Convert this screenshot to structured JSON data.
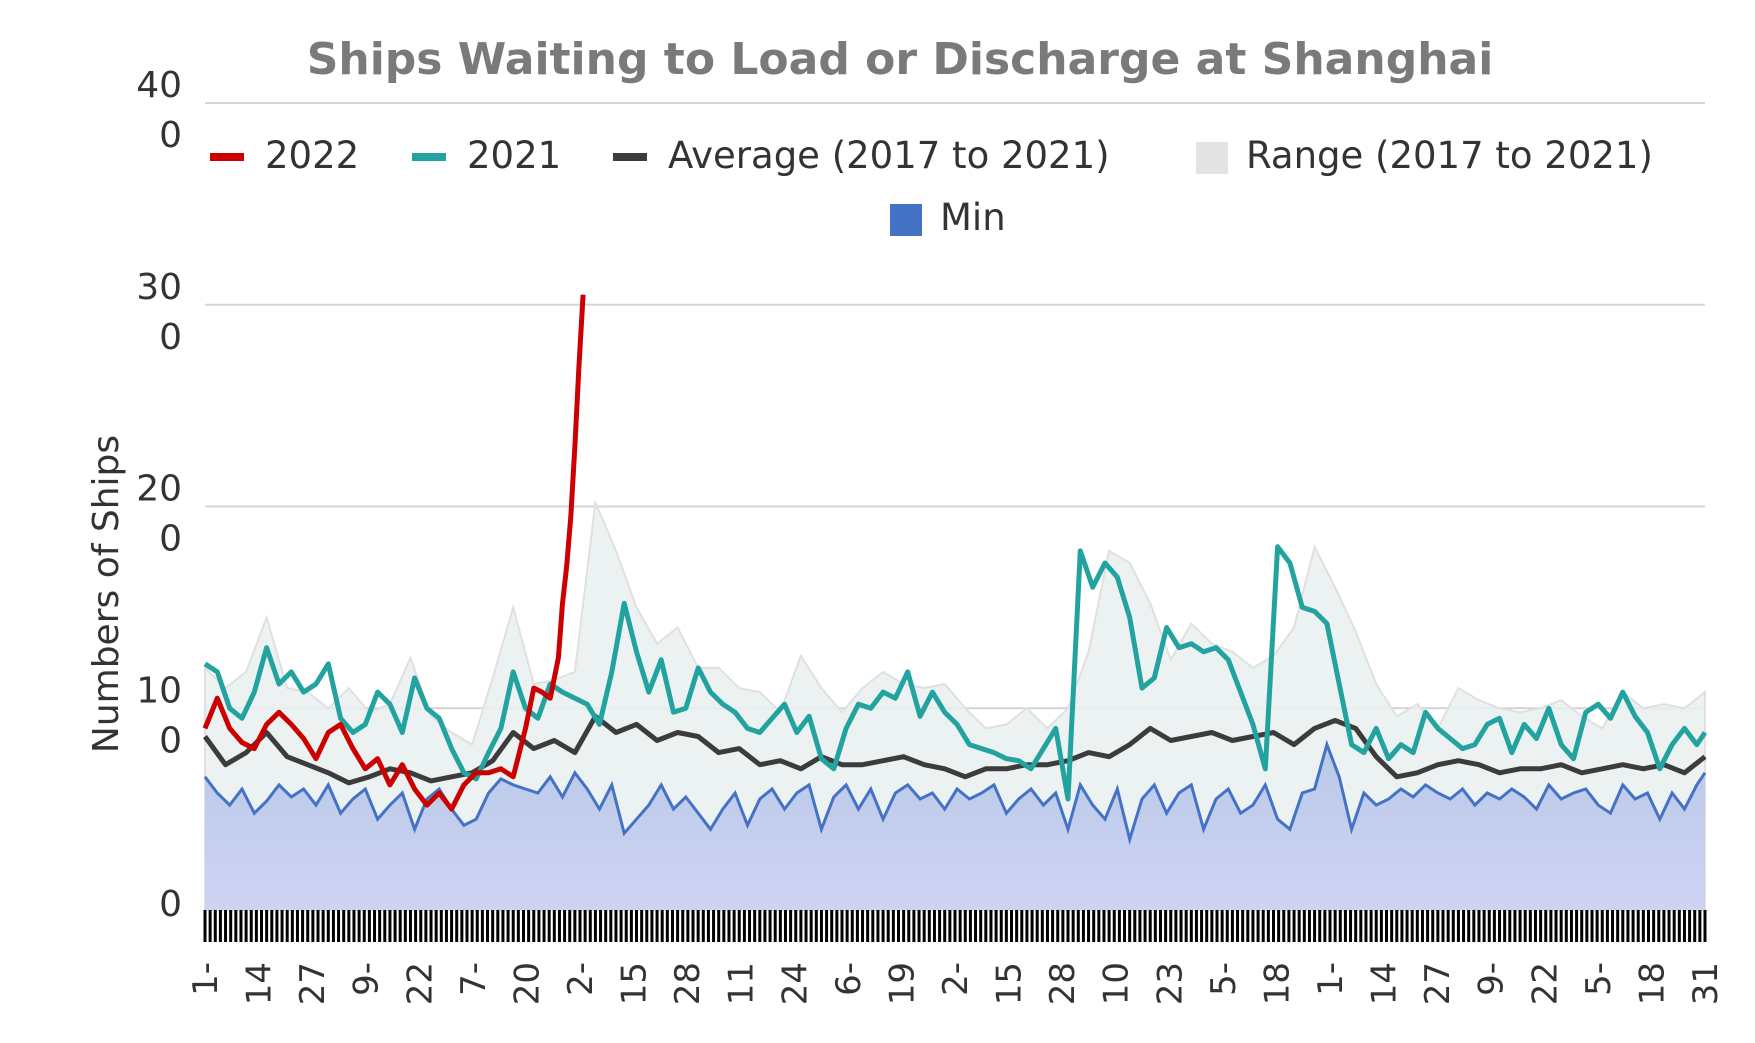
{
  "chart_data": {
    "type": "line",
    "title": "Ships Waiting to Load or Discharge at Shanghai",
    "ylabel": "Numbers of Ships",
    "xlabel": "",
    "ylim": [
      0,
      400
    ],
    "y_ticks": [
      {
        "value": 0,
        "label": [
          "0"
        ]
      },
      {
        "value": 100,
        "label": [
          "10",
          "0"
        ]
      },
      {
        "value": 200,
        "label": [
          "20",
          "0"
        ]
      },
      {
        "value": 300,
        "label": [
          "30",
          "0"
        ]
      },
      {
        "value": 400,
        "label": [
          "40",
          "0"
        ]
      }
    ],
    "x_tick_labels": [
      "1-",
      "14",
      "27",
      "9-",
      "22",
      "7-",
      "20",
      "2-",
      "15",
      "28",
      "11",
      "24",
      "6-",
      "19",
      "2-",
      "15",
      "28",
      "10",
      "23",
      "5-",
      "18",
      "1-",
      "14",
      "27",
      "9-",
      "22",
      "5-",
      "18",
      "31"
    ],
    "grid": true,
    "legend_position": "top",
    "legend": [
      {
        "name": "2022",
        "color": "#cc0000",
        "marker": "line"
      },
      {
        "name": "2021",
        "color": "#22a3a0",
        "marker": "line"
      },
      {
        "name": "Average (2017 to 2021)",
        "color": "#3c3c3c",
        "marker": "line"
      },
      {
        "name": "Range (2017 to 2021)",
        "color": "#e4e4e4",
        "marker": "box"
      },
      {
        "name": "Min",
        "color": "#4472c4",
        "marker": "box"
      }
    ],
    "x_domain": [
      0,
      365
    ],
    "series": [
      {
        "name": "2022",
        "color": "#cc0000",
        "x": [
          0,
          3,
          6,
          9,
          12,
          15,
          18,
          21,
          24,
          27,
          30,
          33,
          36,
          39,
          42,
          45,
          48,
          51,
          54,
          57,
          60,
          63,
          66,
          69,
          72,
          75,
          78,
          80,
          82,
          84,
          86,
          87,
          88,
          89,
          90,
          91,
          92
        ],
        "y": [
          90,
          105,
          90,
          83,
          80,
          92,
          98,
          92,
          85,
          75,
          88,
          92,
          80,
          70,
          75,
          62,
          72,
          60,
          52,
          58,
          50,
          62,
          68,
          68,
          70,
          66,
          90,
          110,
          108,
          105,
          125,
          152,
          170,
          195,
          230,
          270,
          305
        ]
      },
      {
        "name": "2021",
        "color": "#22a3a0",
        "x": [
          0,
          3,
          6,
          9,
          12,
          15,
          18,
          21,
          24,
          27,
          30,
          33,
          36,
          39,
          42,
          45,
          48,
          51,
          54,
          57,
          60,
          63,
          66,
          69,
          72,
          75,
          78,
          81,
          84,
          87,
          90,
          93,
          96,
          99,
          102,
          105,
          108,
          111,
          114,
          117,
          120,
          123,
          126,
          129,
          132,
          135,
          138,
          141,
          144,
          147,
          150,
          153,
          156,
          159,
          162,
          165,
          168,
          171,
          174,
          177,
          180,
          183,
          186,
          189,
          192,
          195,
          198,
          201,
          204,
          207,
          210,
          213,
          216,
          219,
          222,
          225,
          228,
          231,
          234,
          237,
          240,
          243,
          246,
          249,
          252,
          255,
          258,
          261,
          264,
          267,
          270,
          273,
          276,
          279,
          282,
          285,
          288,
          291,
          294,
          297,
          300,
          303,
          306,
          309,
          312,
          315,
          318,
          321,
          324,
          327,
          330,
          333,
          336,
          339,
          342,
          345,
          348,
          351,
          354,
          357,
          360,
          363,
          365
        ],
        "y": [
          122,
          118,
          100,
          95,
          108,
          130,
          112,
          118,
          108,
          112,
          122,
          95,
          88,
          92,
          108,
          102,
          88,
          115,
          100,
          95,
          80,
          68,
          65,
          78,
          90,
          118,
          100,
          95,
          112,
          108,
          105,
          102,
          92,
          118,
          152,
          128,
          108,
          124,
          98,
          100,
          120,
          108,
          102,
          98,
          90,
          88,
          95,
          102,
          88,
          96,
          75,
          70,
          90,
          102,
          100,
          108,
          105,
          118,
          96,
          108,
          98,
          92,
          82,
          80,
          78,
          75,
          74,
          70,
          80,
          90,
          55,
          178,
          160,
          172,
          165,
          145,
          110,
          115,
          140,
          130,
          132,
          128,
          130,
          124,
          108,
          92,
          70,
          180,
          172,
          150,
          148,
          142,
          112,
          82,
          78,
          90,
          75,
          82,
          78,
          98,
          90,
          85,
          80,
          82,
          92,
          95,
          78,
          92,
          85,
          100,
          82,
          75,
          98,
          102,
          95,
          108,
          96,
          88,
          70,
          82,
          90,
          82,
          88
        ]
      },
      {
        "name": "Average (2017 to 2021)",
        "color": "#3c3c3c",
        "x": [
          0,
          5,
          10,
          15,
          20,
          25,
          30,
          35,
          40,
          45,
          50,
          55,
          60,
          65,
          70,
          75,
          80,
          85,
          90,
          95,
          100,
          105,
          110,
          115,
          120,
          125,
          130,
          135,
          140,
          145,
          150,
          155,
          160,
          165,
          170,
          175,
          180,
          185,
          190,
          195,
          200,
          205,
          210,
          215,
          220,
          225,
          230,
          235,
          240,
          245,
          250,
          255,
          260,
          265,
          270,
          275,
          280,
          285,
          290,
          295,
          300,
          305,
          310,
          315,
          320,
          325,
          330,
          335,
          340,
          345,
          350,
          355,
          360,
          365
        ],
        "y": [
          86,
          72,
          78,
          88,
          76,
          72,
          68,
          63,
          66,
          70,
          68,
          64,
          66,
          68,
          74,
          88,
          80,
          84,
          78,
          96,
          88,
          92,
          84,
          88,
          86,
          78,
          80,
          72,
          74,
          70,
          76,
          72,
          72,
          74,
          76,
          72,
          70,
          66,
          70,
          70,
          72,
          72,
          74,
          78,
          76,
          82,
          90,
          84,
          86,
          88,
          84,
          86,
          88,
          82,
          90,
          94,
          90,
          76,
          66,
          68,
          72,
          74,
          72,
          68,
          70,
          70,
          72,
          68,
          70,
          72,
          70,
          72,
          68,
          76
        ]
      },
      {
        "name": "Range (2017 to 2021)",
        "color": "#e4e4e4",
        "type": "area-upper",
        "x": [
          0,
          5,
          10,
          15,
          20,
          25,
          30,
          35,
          40,
          45,
          50,
          55,
          60,
          65,
          70,
          75,
          80,
          85,
          90,
          95,
          100,
          105,
          110,
          115,
          120,
          125,
          130,
          135,
          140,
          145,
          150,
          155,
          160,
          165,
          170,
          175,
          180,
          185,
          190,
          195,
          200,
          205,
          210,
          215,
          220,
          225,
          230,
          235,
          240,
          245,
          250,
          255,
          260,
          265,
          270,
          275,
          280,
          285,
          290,
          295,
          300,
          305,
          310,
          315,
          320,
          325,
          330,
          335,
          340,
          345,
          350,
          355,
          360,
          365
        ],
        "y": [
          120,
          110,
          118,
          145,
          110,
          108,
          100,
          110,
          98,
          102,
          125,
          96,
          88,
          82,
          115,
          150,
          112,
          114,
          118,
          202,
          178,
          150,
          132,
          140,
          120,
          120,
          110,
          108,
          98,
          126,
          110,
          98,
          110,
          118,
          112,
          110,
          112,
          100,
          90,
          92,
          100,
          90,
          100,
          128,
          178,
          172,
          152,
          124,
          142,
          132,
          128,
          120,
          126,
          140,
          180,
          160,
          138,
          112,
          96,
          102,
          90,
          110,
          104,
          100,
          98,
          100,
          104,
          96,
          90,
          108,
          100,
          102,
          100,
          108
        ]
      },
      {
        "name": "Min",
        "color": "#4472c4",
        "type": "area",
        "x": [
          0,
          3,
          6,
          9,
          12,
          15,
          18,
          21,
          24,
          27,
          30,
          33,
          36,
          39,
          42,
          45,
          48,
          51,
          54,
          57,
          60,
          63,
          66,
          69,
          72,
          75,
          78,
          81,
          84,
          87,
          90,
          93,
          96,
          99,
          102,
          105,
          108,
          111,
          114,
          117,
          120,
          123,
          126,
          129,
          132,
          135,
          138,
          141,
          144,
          147,
          150,
          153,
          156,
          159,
          162,
          165,
          168,
          171,
          174,
          177,
          180,
          183,
          186,
          189,
          192,
          195,
          198,
          201,
          204,
          207,
          210,
          213,
          216,
          219,
          222,
          225,
          228,
          231,
          234,
          237,
          240,
          243,
          246,
          249,
          252,
          255,
          258,
          261,
          264,
          267,
          270,
          273,
          276,
          279,
          282,
          285,
          288,
          291,
          294,
          297,
          300,
          303,
          306,
          309,
          312,
          315,
          318,
          321,
          324,
          327,
          330,
          333,
          336,
          339,
          342,
          345,
          348,
          351,
          354,
          357,
          360,
          363,
          365
        ],
        "y": [
          66,
          58,
          52,
          60,
          48,
          54,
          62,
          56,
          60,
          52,
          62,
          48,
          55,
          60,
          45,
          52,
          58,
          40,
          55,
          60,
          50,
          42,
          45,
          58,
          65,
          62,
          60,
          58,
          66,
          56,
          68,
          60,
          50,
          62,
          38,
          45,
          52,
          62,
          50,
          56,
          48,
          40,
          50,
          58,
          42,
          55,
          60,
          50,
          58,
          62,
          40,
          56,
          62,
          50,
          60,
          45,
          58,
          62,
          55,
          58,
          50,
          60,
          55,
          58,
          62,
          48,
          55,
          60,
          52,
          58,
          40,
          62,
          52,
          45,
          60,
          35,
          55,
          62,
          48,
          58,
          62,
          40,
          55,
          60,
          48,
          52,
          62,
          45,
          40,
          58,
          60,
          82,
          66,
          40,
          58,
          52,
          55,
          60,
          56,
          62,
          58,
          55,
          60,
          52,
          58,
          55,
          60,
          56,
          50,
          62,
          55,
          58,
          60,
          52,
          48,
          62,
          55,
          58,
          45,
          58,
          50,
          62,
          68
        ]
      }
    ]
  }
}
